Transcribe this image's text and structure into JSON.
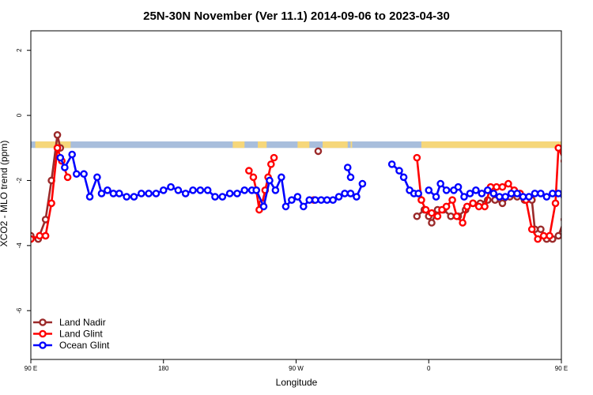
{
  "chart_data": {
    "type": "line",
    "title": "25N-30N November (Ver 11.1)   2014-09-06 to 2023-04-30",
    "xlabel": "Longitude",
    "ylabel": "XCO2 - MLO trend (ppm)",
    "xlim": [
      90,
      450
    ],
    "ylim": [
      -7.5,
      2.6
    ],
    "x_ticks": [
      {
        "value": 90,
        "label": "90 E"
      },
      {
        "value": 180,
        "label": "180"
      },
      {
        "value": 270,
        "label": "90 W"
      },
      {
        "value": 360,
        "label": "0"
      },
      {
        "value": 450,
        "label": "90 E"
      },
      {
        "value": 540,
        "label": "180"
      }
    ],
    "y_ticks": [
      {
        "value": 2,
        "label": "2"
      },
      {
        "value": 0,
        "label": "0"
      },
      {
        "value": -2,
        "label": "-2"
      },
      {
        "value": -4,
        "label": "-4"
      },
      {
        "value": -6,
        "label": "-6"
      }
    ],
    "legend_position": "bottom-left",
    "land_strip": {
      "y_range": [
        -1.0,
        -0.8
      ],
      "ocean_color": "#a8bedc",
      "land_color": "#f6d77a",
      "land_segments": [
        [
          93,
          117
        ],
        [
          227,
          235
        ],
        [
          244,
          250
        ],
        [
          271,
          279
        ],
        [
          288,
          305
        ],
        [
          307,
          308
        ],
        [
          355,
          460
        ],
        [
          485,
          495
        ],
        [
          536,
          549
        ],
        [
          560,
          590
        ]
      ]
    },
    "series": [
      {
        "name": "Land Nadir",
        "color": "#9b2a2a",
        "segments": [
          [
            [
              90,
              -3.7
            ],
            [
              95,
              -3.8
            ],
            [
              100,
              -3.2
            ],
            [
              104,
              -2.0
            ],
            [
              108,
              -0.6
            ],
            [
              110,
              -1.0
            ]
          ],
          [
            [
              285,
              -1.1
            ]
          ],
          [
            [
              352,
              -3.1
            ],
            [
              357,
              -2.9
            ],
            [
              360,
              -3.1
            ],
            [
              362,
              -3.3
            ],
            [
              366,
              -2.9
            ],
            [
              370,
              -2.9
            ],
            [
              375,
              -3.1
            ],
            [
              380,
              -3.1
            ],
            [
              385,
              -2.9
            ],
            [
              390,
              -2.7
            ],
            [
              395,
              -2.7
            ],
            [
              400,
              -2.6
            ],
            [
              405,
              -2.6
            ],
            [
              410,
              -2.7
            ],
            [
              415,
              -2.5
            ],
            [
              420,
              -2.5
            ],
            [
              425,
              -2.6
            ],
            [
              430,
              -2.6
            ],
            [
              432,
              -3.5
            ],
            [
              436,
              -3.5
            ],
            [
              440,
              -3.8
            ],
            [
              444,
              -3.8
            ],
            [
              448,
              -3.7
            ],
            [
              452,
              -3.2
            ],
            [
              456,
              -2.0
            ],
            [
              460,
              -0.6
            ],
            [
              464,
              -1.0
            ]
          ]
        ]
      },
      {
        "name": "Land Glint",
        "color": "#ff0000",
        "segments": [
          [
            [
              90,
              -3.8
            ],
            [
              96,
              -3.7
            ],
            [
              100,
              -3.7
            ],
            [
              104,
              -2.7
            ],
            [
              108,
              -1.0
            ],
            [
              111,
              -1.4
            ],
            [
              115,
              -1.9
            ]
          ],
          [
            [
              238,
              -1.7
            ],
            [
              241,
              -1.9
            ],
            [
              243,
              -2.3
            ],
            [
              245,
              -2.9
            ],
            [
              247,
              -2.7
            ],
            [
              249,
              -2.3
            ],
            [
              251,
              -1.9
            ],
            [
              253,
              -1.5
            ],
            [
              255,
              -1.3
            ]
          ],
          [
            [
              282,
              -2.6
            ]
          ],
          [
            [
              352,
              -1.3
            ],
            [
              355,
              -2.6
            ],
            [
              358,
              -2.9
            ],
            [
              362,
              -3.0
            ],
            [
              366,
              -3.1
            ],
            [
              369,
              -2.9
            ],
            [
              372,
              -2.8
            ],
            [
              376,
              -2.6
            ],
            [
              379,
              -3.1
            ],
            [
              383,
              -3.3
            ],
            [
              386,
              -2.8
            ],
            [
              390,
              -2.7
            ],
            [
              394,
              -2.8
            ],
            [
              398,
              -2.8
            ],
            [
              402,
              -2.2
            ],
            [
              406,
              -2.2
            ],
            [
              410,
              -2.2
            ],
            [
              414,
              -2.1
            ],
            [
              418,
              -2.3
            ],
            [
              422,
              -2.4
            ],
            [
              426,
              -2.6
            ],
            [
              430,
              -3.5
            ],
            [
              434,
              -3.8
            ],
            [
              438,
              -3.7
            ],
            [
              442,
              -3.7
            ],
            [
              446,
              -2.7
            ],
            [
              448,
              -1.0
            ],
            [
              452,
              -1.4
            ],
            [
              456,
              -1.9
            ]
          ]
        ]
      },
      {
        "name": "Ocean Glint",
        "color": "#0000ff",
        "segments": [
          [
            [
              110,
              -1.3
            ],
            [
              113,
              -1.6
            ],
            [
              118,
              -1.2
            ],
            [
              121,
              -1.8
            ],
            [
              126,
              -1.8
            ],
            [
              130,
              -2.5
            ],
            [
              135,
              -1.9
            ],
            [
              138,
              -2.4
            ],
            [
              142,
              -2.3
            ],
            [
              146,
              -2.4
            ],
            [
              150,
              -2.4
            ],
            [
              155,
              -2.5
            ],
            [
              160,
              -2.5
            ],
            [
              165,
              -2.4
            ],
            [
              170,
              -2.4
            ],
            [
              175,
              -2.4
            ],
            [
              180,
              -2.3
            ],
            [
              185,
              -2.2
            ],
            [
              190,
              -2.3
            ],
            [
              195,
              -2.4
            ],
            [
              200,
              -2.3
            ],
            [
              205,
              -2.3
            ],
            [
              210,
              -2.3
            ],
            [
              215,
              -2.5
            ],
            [
              220,
              -2.5
            ],
            [
              225,
              -2.4
            ],
            [
              230,
              -2.4
            ],
            [
              235,
              -2.3
            ],
            [
              240,
              -2.3
            ],
            [
              243,
              -2.3
            ],
            [
              248,
              -2.8
            ],
            [
              252,
              -2.0
            ],
            [
              256,
              -2.3
            ],
            [
              260,
              -1.9
            ],
            [
              263,
              -2.8
            ],
            [
              267,
              -2.6
            ],
            [
              271,
              -2.5
            ],
            [
              275,
              -2.8
            ],
            [
              279,
              -2.6
            ],
            [
              283,
              -2.6
            ],
            [
              287,
              -2.6
            ],
            [
              291,
              -2.6
            ],
            [
              295,
              -2.6
            ],
            [
              299,
              -2.5
            ],
            [
              303,
              -2.4
            ],
            [
              307,
              -2.4
            ],
            [
              311,
              -2.5
            ],
            [
              315,
              -2.1
            ]
          ],
          [
            [
              305,
              -1.6
            ],
            [
              307,
              -1.9
            ]
          ],
          [
            [
              335,
              -1.5
            ],
            [
              340,
              -1.7
            ],
            [
              343,
              -1.9
            ],
            [
              347,
              -2.3
            ],
            [
              350,
              -2.4
            ],
            [
              353,
              -2.4
            ]
          ],
          [
            [
              360,
              -2.3
            ],
            [
              365,
              -2.5
            ],
            [
              368,
              -2.1
            ],
            [
              372,
              -2.3
            ],
            [
              377,
              -2.3
            ],
            [
              380,
              -2.2
            ],
            [
              384,
              -2.5
            ],
            [
              388,
              -2.4
            ],
            [
              392,
              -2.3
            ],
            [
              396,
              -2.4
            ],
            [
              400,
              -2.3
            ],
            [
              404,
              -2.4
            ],
            [
              408,
              -2.5
            ],
            [
              412,
              -2.5
            ],
            [
              416,
              -2.4
            ],
            [
              420,
              -2.4
            ],
            [
              424,
              -2.5
            ],
            [
              428,
              -2.5
            ],
            [
              432,
              -2.4
            ],
            [
              436,
              -2.4
            ],
            [
              440,
              -2.5
            ],
            [
              444,
              -2.4
            ],
            [
              448,
              -2.4
            ],
            [
              452,
              -2.5
            ]
          ]
        ]
      }
    ]
  }
}
